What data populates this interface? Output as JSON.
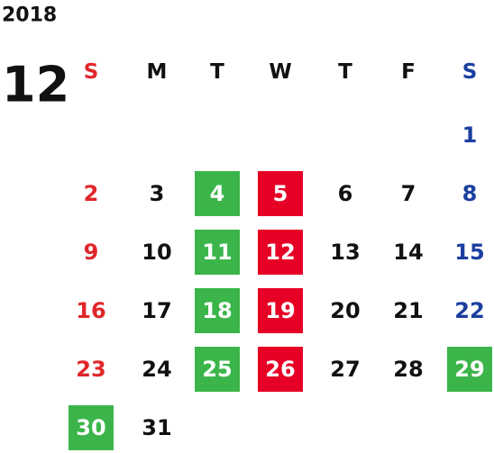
{
  "calendar": {
    "year": "2018",
    "month": "12",
    "weekdays": [
      {
        "label": "S",
        "color": "#e0262a"
      },
      {
        "label": "M",
        "color": "#111111"
      },
      {
        "label": "T",
        "color": "#111111"
      },
      {
        "label": "W",
        "color": "#111111"
      },
      {
        "label": "T",
        "color": "#111111"
      },
      {
        "label": "F",
        "color": "#111111"
      },
      {
        "label": "S",
        "color": "#1b3fa0"
      }
    ],
    "weeks": [
      [
        null,
        null,
        null,
        null,
        null,
        null,
        {
          "day": 1
        }
      ],
      [
        {
          "day": 2
        },
        {
          "day": 3
        },
        {
          "day": 4,
          "bg": "#3bb54a"
        },
        {
          "day": 5,
          "bg": "#e60026"
        },
        {
          "day": 6
        },
        {
          "day": 7
        },
        {
          "day": 8
        }
      ],
      [
        {
          "day": 9
        },
        {
          "day": 10
        },
        {
          "day": 11,
          "bg": "#3bb54a"
        },
        {
          "day": 12,
          "bg": "#e60026"
        },
        {
          "day": 13
        },
        {
          "day": 14
        },
        {
          "day": 15
        }
      ],
      [
        {
          "day": 16
        },
        {
          "day": 17
        },
        {
          "day": 18,
          "bg": "#3bb54a"
        },
        {
          "day": 19,
          "bg": "#e60026"
        },
        {
          "day": 20
        },
        {
          "day": 21
        },
        {
          "day": 22
        }
      ],
      [
        {
          "day": 23
        },
        {
          "day": 24
        },
        {
          "day": 25,
          "bg": "#3bb54a"
        },
        {
          "day": 26,
          "bg": "#e60026"
        },
        {
          "day": 27
        },
        {
          "day": 28
        },
        {
          "day": 29,
          "bg": "#3bb54a"
        }
      ],
      [
        {
          "day": 30,
          "bg": "#3bb54a"
        },
        {
          "day": 31
        },
        null,
        null,
        null,
        null,
        null
      ]
    ]
  }
}
